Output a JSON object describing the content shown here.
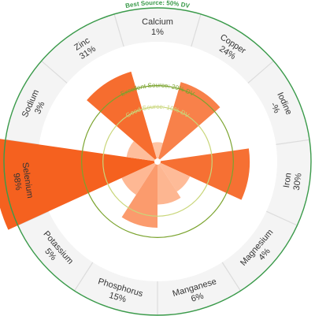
{
  "chart_data": {
    "type": "radial-bar",
    "unit": "% DV",
    "categories": [
      "Calcium",
      "Copper",
      "Iodine",
      "Iron",
      "Magnesium",
      "Manganese",
      "Phosphorus",
      "Potassium",
      "Selenium",
      "Sodium",
      "Zinc"
    ],
    "values": [
      1,
      24,
      null,
      30,
      4,
      6,
      15,
      5,
      98,
      3,
      31
    ],
    "value_labels": [
      "1%",
      "24%",
      "-%",
      "30%",
      "4%",
      "6%",
      "15%",
      "5%",
      "98%",
      "3%",
      "31%"
    ],
    "reference_rings": [
      {
        "label": "Good Source: 10% DV",
        "value": 10,
        "color": "#c9d67a"
      },
      {
        "label": "Excellent Source: 20% DV",
        "value": 20,
        "color": "#7aa32d"
      },
      {
        "label": "Best Source: 50% DV",
        "value": 50,
        "color": "#3a9a4a"
      }
    ],
    "radial_max": 50,
    "bar_colors": {
      "low": "#ffc7a8",
      "high": "#f5611f"
    }
  }
}
